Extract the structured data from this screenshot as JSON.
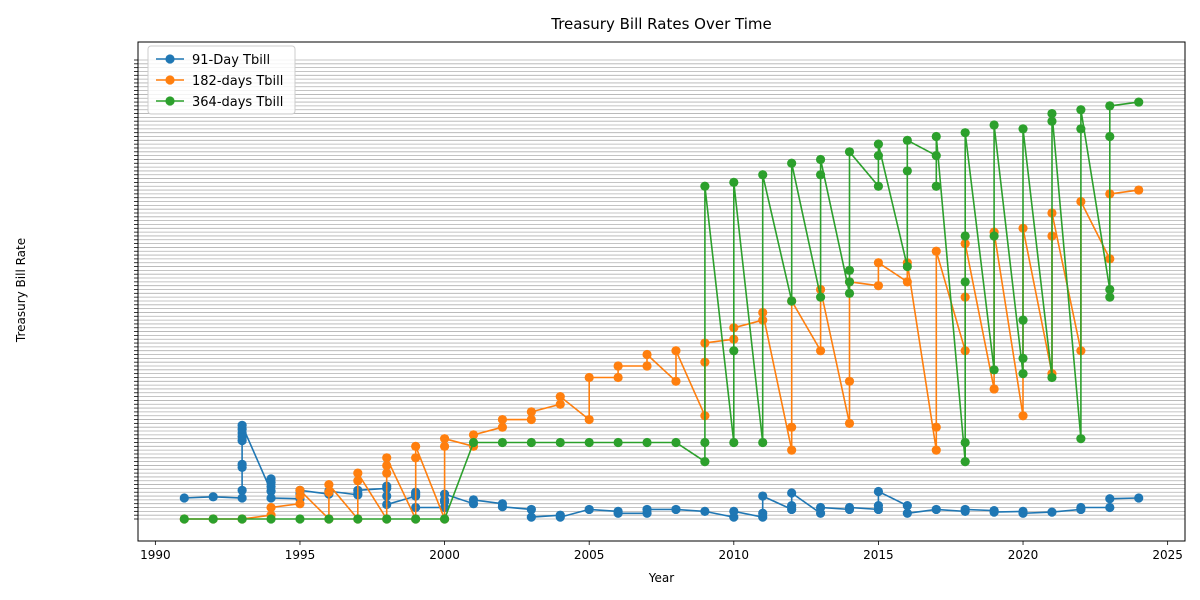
{
  "chart_data": {
    "type": "line",
    "title": "Treasury Bill Rates Over Time",
    "xlabel": "Year",
    "ylabel": "Treasury Bill Rate",
    "xlim": [
      1989.4,
      2025.6
    ],
    "xticks": [
      1990,
      1995,
      2000,
      2005,
      2010,
      2015,
      2020,
      2025
    ],
    "ytick_count": 120,
    "ylim": [
      0,
      120
    ],
    "grid": "horizontal",
    "legend": "top-left",
    "y_tick_labels_overlap": true,
    "series": [
      {
        "name": "91-Day Tbill",
        "color": "#1f77b4",
        "x": [
          1991,
          1992,
          1993,
          1993,
          1993,
          1993,
          1993,
          1993,
          1993,
          1993,
          1993,
          1994,
          1994,
          1994,
          1994,
          1994,
          1995,
          1995,
          1995,
          1996,
          1996,
          1997,
          1997,
          1997,
          1998,
          1998,
          1998,
          1998,
          1999,
          1999,
          1999,
          1999,
          2000,
          2000,
          2000,
          2000,
          2001,
          2001,
          2002,
          2002,
          2003,
          2003,
          2004,
          2004,
          2005,
          2006,
          2006,
          2007,
          2007,
          2008,
          2009,
          2010,
          2010,
          2011,
          2011,
          2011,
          2012,
          2012,
          2012,
          2013,
          2013,
          2014,
          2014,
          2015,
          2015,
          2015,
          2016,
          2016,
          2017,
          2018,
          2018,
          2019,
          2019,
          2020,
          2020,
          2021,
          2022,
          2022,
          2023,
          2023,
          2024
        ],
        "y": [
          5.5,
          5.8,
          5.5,
          7.5,
          13.5,
          14.3,
          20.5,
          21.5,
          22.5,
          23.5,
          24.5,
          7.3,
          8.5,
          9.5,
          10.5,
          5.5,
          5.3,
          6.5,
          7.5,
          6.5,
          7.3,
          6.3,
          6.6,
          7.5,
          8.0,
          8.6,
          6.0,
          3.8,
          6.0,
          6.5,
          7.0,
          3.0,
          3.0,
          4.5,
          5.0,
          6.5,
          4.0,
          5.0,
          4.0,
          3.2,
          2.5,
          0.5,
          1.0,
          0.5,
          2.5,
          2.0,
          1.5,
          1.5,
          2.5,
          2.5,
          2.0,
          0.5,
          2.0,
          0.5,
          1.5,
          6.0,
          2.5,
          3.5,
          6.8,
          1.5,
          3.0,
          2.5,
          3.0,
          2.5,
          3.5,
          7.2,
          3.5,
          1.5,
          2.5,
          2.0,
          2.5,
          2.2,
          1.8,
          2.0,
          1.5,
          1.8,
          2.5,
          3.0,
          3.0,
          5.3,
          5.5
        ]
      },
      {
        "name": "182-days Tbill",
        "color": "#ff7f0e",
        "x": [
          1991,
          1992,
          1993,
          1994,
          1994,
          1995,
          1995,
          1995,
          1996,
          1996,
          1996,
          1997,
          1997,
          1997,
          1998,
          1998,
          1998,
          1998,
          1999,
          1999,
          1999,
          2000,
          2000,
          2000,
          2001,
          2001,
          2002,
          2002,
          2003,
          2003,
          2004,
          2004,
          2005,
          2005,
          2006,
          2006,
          2007,
          2007,
          2008,
          2008,
          2009,
          2009,
          2009,
          2010,
          2010,
          2011,
          2011,
          2012,
          2012,
          2012,
          2013,
          2013,
          2014,
          2014,
          2014,
          2015,
          2015,
          2016,
          2016,
          2017,
          2017,
          2017,
          2018,
          2018,
          2018,
          2019,
          2019,
          2020,
          2020,
          2021,
          2021,
          2021,
          2022,
          2022,
          2023,
          2023,
          2024
        ],
        "y": [
          0.0,
          0.0,
          0.0,
          1.0,
          3.0,
          4.0,
          6.0,
          7.5,
          0.0,
          7.0,
          9.0,
          0.0,
          10.0,
          12.0,
          0.0,
          12.0,
          14.0,
          16.0,
          0.0,
          16.0,
          19.0,
          0.0,
          19.0,
          21.0,
          19.0,
          22.0,
          24.0,
          26.0,
          26.0,
          28.0,
          30.0,
          32.0,
          26.0,
          37.0,
          37.0,
          40.0,
          40.0,
          43.0,
          36.0,
          44.0,
          27.0,
          41.0,
          46.0,
          47.0,
          50.0,
          52.0,
          54.0,
          18.0,
          24.0,
          57.0,
          44.0,
          60.0,
          25.0,
          36.0,
          62.0,
          61.0,
          67.0,
          62.0,
          67.0,
          18.0,
          24.0,
          70.0,
          44.0,
          58.0,
          72.0,
          34.0,
          75.0,
          27.0,
          76.0,
          38.0,
          74.0,
          80.0,
          44.0,
          83.0,
          68.0,
          85.0,
          86.0
        ]
      },
      {
        "name": "364-days Tbill",
        "color": "#2ca02c",
        "x": [
          1991,
          1992,
          1993,
          1994,
          1995,
          1996,
          1997,
          1998,
          1999,
          2000,
          2001,
          2002,
          2003,
          2004,
          2005,
          2006,
          2007,
          2008,
          2009,
          2009,
          2009,
          2010,
          2010,
          2010,
          2011,
          2011,
          2012,
          2012,
          2013,
          2013,
          2013,
          2014,
          2014,
          2014,
          2014,
          2015,
          2015,
          2015,
          2016,
          2016,
          2016,
          2017,
          2017,
          2017,
          2018,
          2018,
          2018,
          2018,
          2018,
          2019,
          2019,
          2019,
          2020,
          2020,
          2020,
          2020,
          2021,
          2021,
          2021,
          2022,
          2022,
          2022,
          2023,
          2023,
          2023,
          2023,
          2024
        ],
        "y": [
          0.0,
          0.0,
          0.0,
          0.0,
          0.0,
          0.0,
          0.0,
          0.0,
          0.0,
          0.0,
          20.0,
          20.0,
          20.0,
          20.0,
          20.0,
          20.0,
          20.0,
          20.0,
          15.0,
          20.0,
          87.0,
          20.0,
          44.0,
          88.0,
          20.0,
          90.0,
          57.0,
          93.0,
          58.0,
          90.0,
          94.0,
          59.0,
          62.0,
          65.0,
          96.0,
          87.0,
          95.0,
          98.0,
          66.0,
          91.0,
          99.0,
          95.0,
          87.0,
          100.0,
          15.0,
          20.0,
          62.0,
          74.0,
          101.0,
          39.0,
          74.0,
          103.0,
          38.0,
          42.0,
          52.0,
          102.0,
          37.0,
          104.0,
          106.0,
          21.0,
          102.0,
          107.0,
          60.0,
          100.0,
          58.0,
          108.0,
          109.0
        ]
      }
    ]
  }
}
